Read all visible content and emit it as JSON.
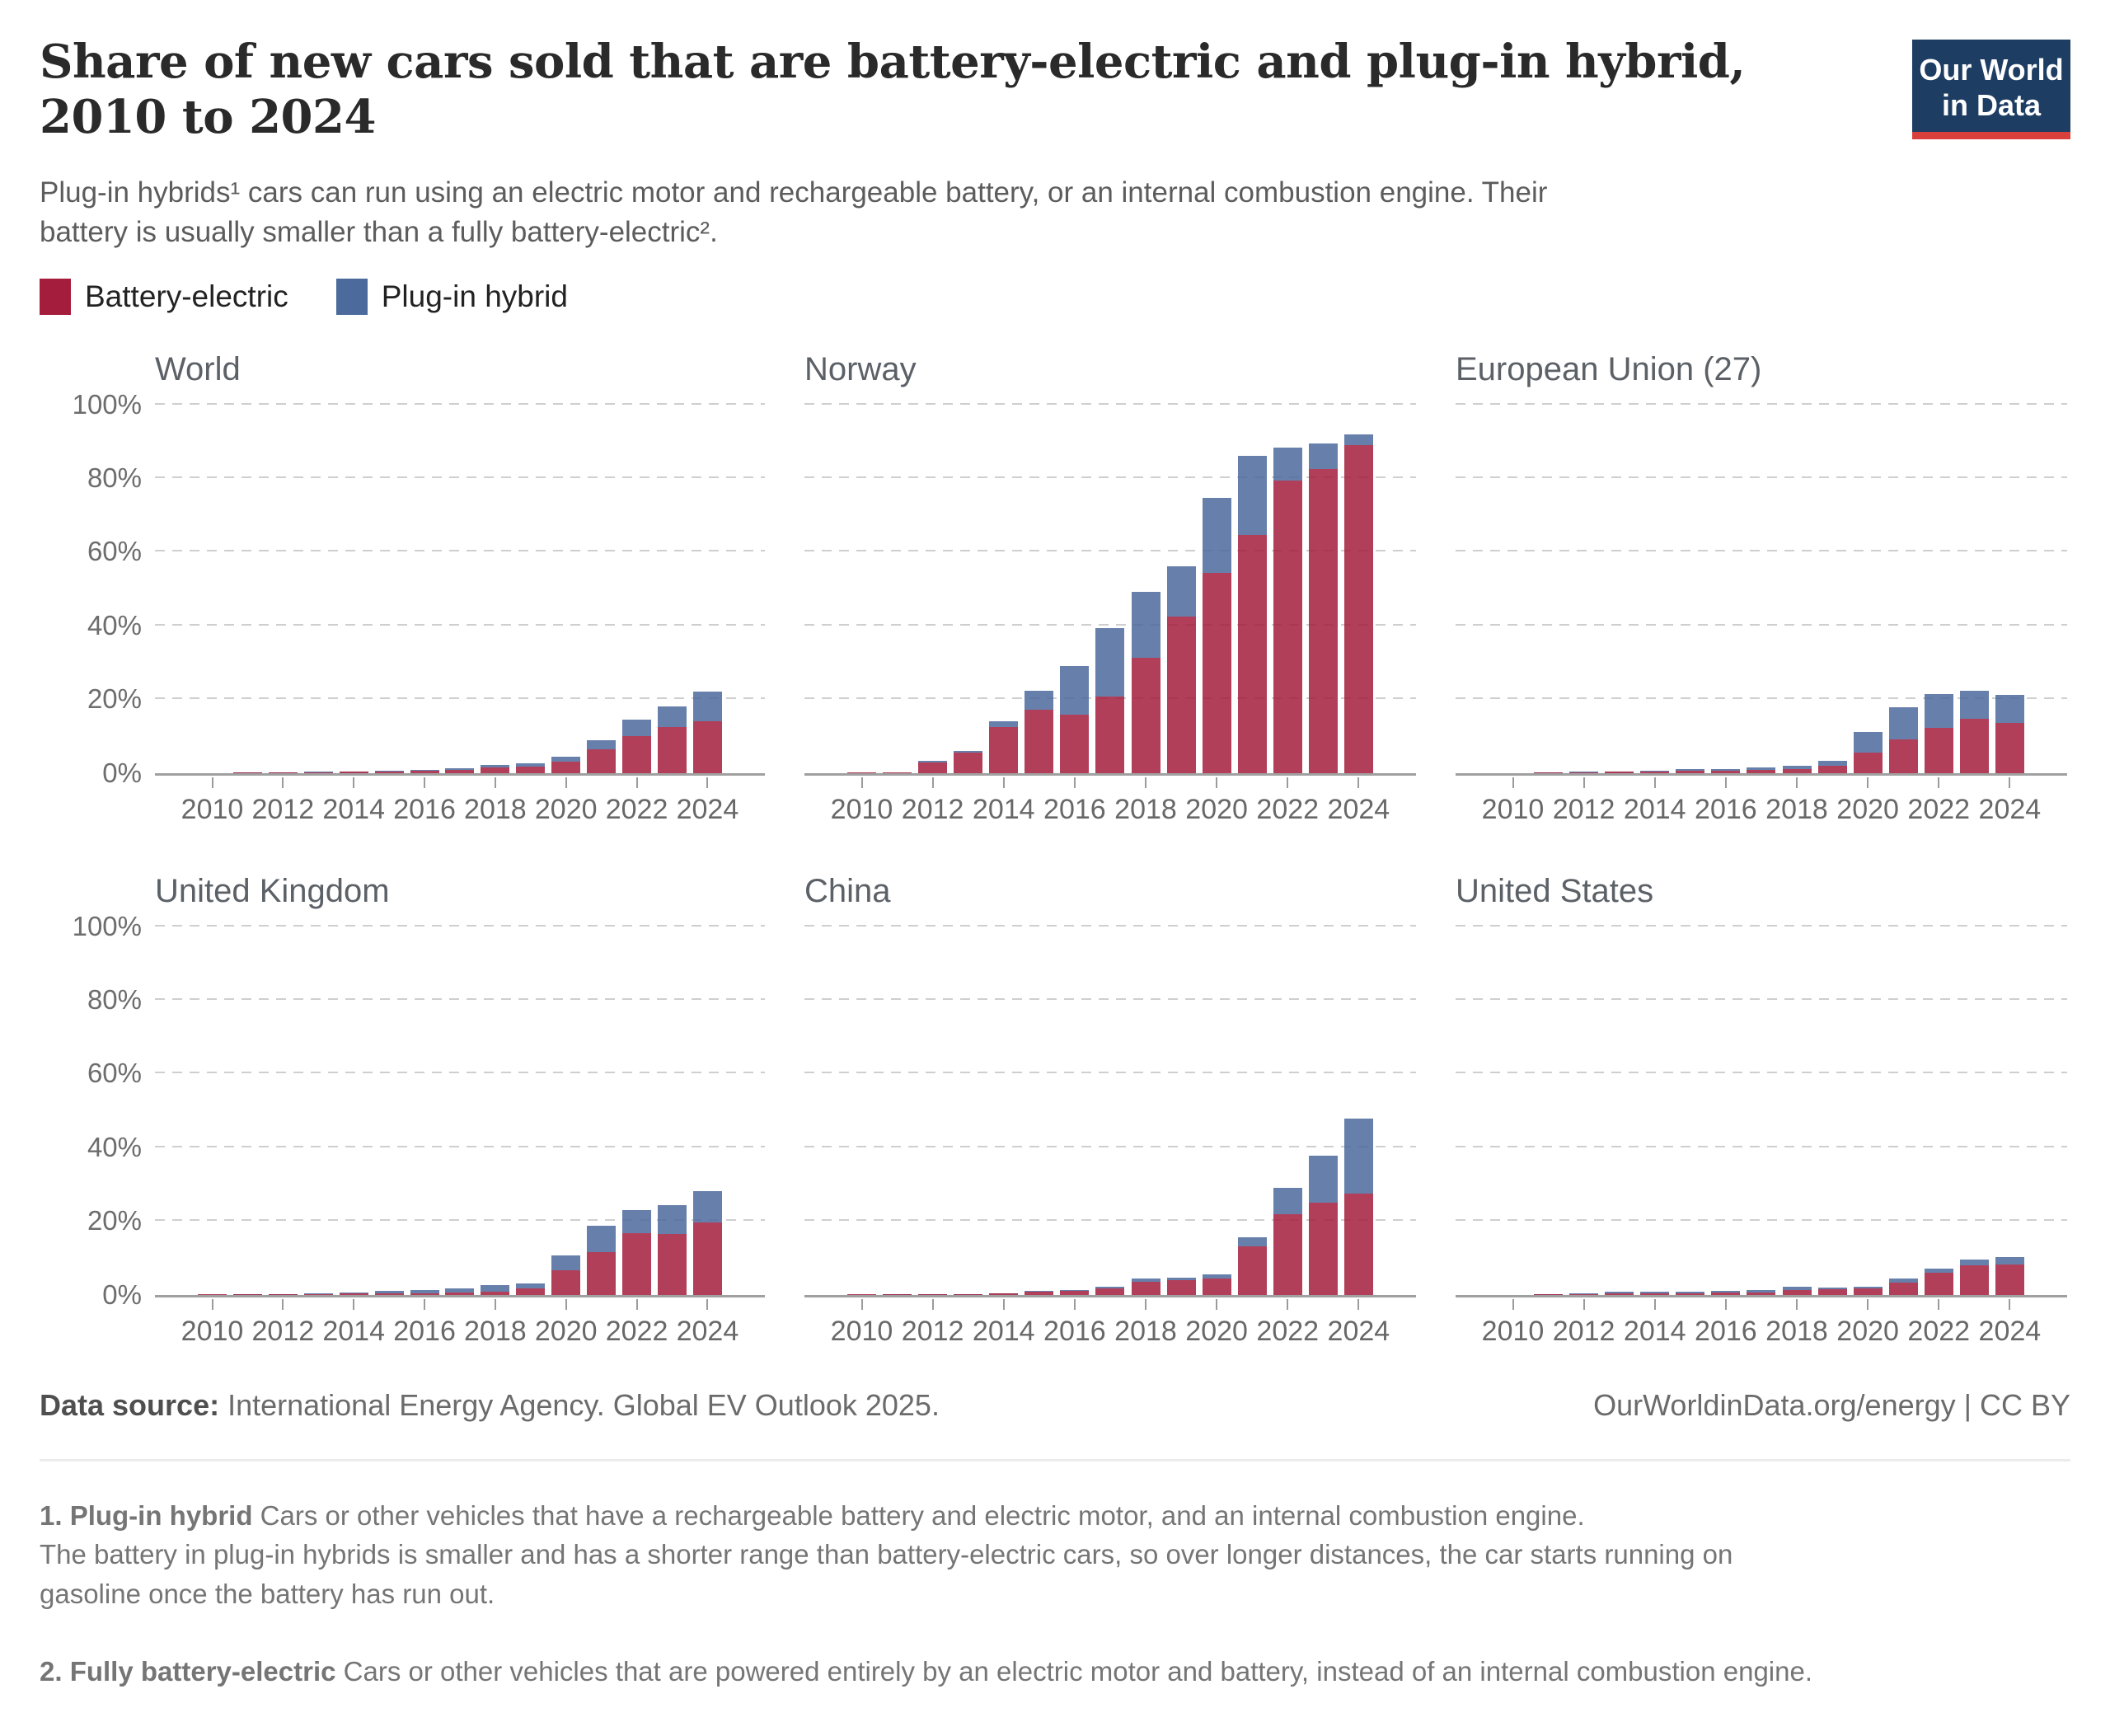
{
  "header": {
    "title_line1": "Share of new cars sold that are battery-electric and plug-in hybrid,",
    "title_line2": "2010 to 2024",
    "logo": {
      "line1": "Our World",
      "line2": "in Data"
    }
  },
  "subtitle": {
    "line1": "Plug-in hybrids¹ cars can run using an electric motor and rechargeable battery, or an internal combustion engine. Their",
    "line2": "battery is usually smaller than a fully battery-electric²."
  },
  "legend": {
    "items": [
      {
        "label": "Battery-electric",
        "color": "#a51d3c"
      },
      {
        "label": "Plug-in hybrid",
        "color": "#4c6a9c"
      }
    ]
  },
  "colors": {
    "logo_bg": "#1d3d63",
    "logo_accent": "#d8403c",
    "axis_line": "#a0a0a0",
    "gridline": "#cfcfcf"
  },
  "axes": {
    "y_ticks": [
      "0%",
      "20%",
      "40%",
      "60%",
      "80%",
      "100%"
    ],
    "x_tick_labels": [
      "2010",
      "2012",
      "2014",
      "2016",
      "2018",
      "2020",
      "2022",
      "2024"
    ],
    "ylim": [
      0,
      100
    ],
    "grid": "dashed horizontal every 20%"
  },
  "chart_data": [
    {
      "type": "bar",
      "stacked": true,
      "title": "World",
      "x": [
        2010,
        2011,
        2012,
        2013,
        2014,
        2015,
        2016,
        2017,
        2018,
        2019,
        2020,
        2021,
        2022,
        2023,
        2024
      ],
      "series": [
        {
          "name": "Battery-electric",
          "values": [
            0.01,
            0.04,
            0.08,
            0.15,
            0.25,
            0.4,
            0.6,
            0.9,
            1.4,
            1.7,
            3.1,
            6.3,
            10.0,
            12.4,
            13.9
          ]
        },
        {
          "name": "Plug-in hybrid",
          "values": [
            0.0,
            0.02,
            0.05,
            0.1,
            0.15,
            0.25,
            0.3,
            0.45,
            0.8,
            0.9,
            1.3,
            2.5,
            4.4,
            5.7,
            8.1
          ]
        }
      ]
    },
    {
      "type": "bar",
      "stacked": true,
      "title": "Norway",
      "x": [
        2010,
        2011,
        2012,
        2013,
        2014,
        2015,
        2016,
        2017,
        2018,
        2019,
        2020,
        2021,
        2022,
        2023,
        2024
      ],
      "series": [
        {
          "name": "Battery-electric",
          "values": [
            0.1,
            0.2,
            2.9,
            5.5,
            12.5,
            17.1,
            15.7,
            20.8,
            31.2,
            42.4,
            54.3,
            64.5,
            79.3,
            82.4,
            88.9
          ]
        },
        {
          "name": "Plug-in hybrid",
          "values": [
            0.0,
            0.0,
            0.3,
            0.4,
            1.4,
            5.1,
            13.4,
            18.4,
            17.9,
            13.6,
            20.4,
            21.5,
            8.9,
            7.1,
            2.9
          ]
        }
      ]
    },
    {
      "type": "bar",
      "stacked": true,
      "title": "European Union (27)",
      "x": [
        2010,
        2011,
        2012,
        2013,
        2014,
        2015,
        2016,
        2017,
        2018,
        2019,
        2020,
        2021,
        2022,
        2023,
        2024
      ],
      "series": [
        {
          "name": "Battery-electric",
          "values": [
            0.0,
            0.05,
            0.15,
            0.25,
            0.35,
            0.5,
            0.6,
            0.8,
            1.0,
            2.0,
            5.4,
            9.1,
            12.1,
            14.6,
            13.6
          ]
        },
        {
          "name": "Plug-in hybrid",
          "values": [
            0.0,
            0.02,
            0.1,
            0.2,
            0.25,
            0.45,
            0.5,
            0.7,
            0.9,
            1.2,
            5.7,
            8.7,
            9.3,
            7.7,
            7.5
          ]
        }
      ]
    },
    {
      "type": "bar",
      "stacked": true,
      "title": "United Kingdom",
      "x": [
        2010,
        2011,
        2012,
        2013,
        2014,
        2015,
        2016,
        2017,
        2018,
        2019,
        2020,
        2021,
        2022,
        2023,
        2024
      ],
      "series": [
        {
          "name": "Battery-electric",
          "values": [
            0.05,
            0.05,
            0.1,
            0.15,
            0.25,
            0.4,
            0.45,
            0.5,
            0.7,
            1.6,
            6.6,
            11.6,
            16.6,
            16.5,
            19.6
          ]
        },
        {
          "name": "Plug-in hybrid",
          "values": [
            0.0,
            0.05,
            0.1,
            0.1,
            0.3,
            0.7,
            0.9,
            1.3,
            1.8,
            1.5,
            4.1,
            7.0,
            6.3,
            7.7,
            8.6
          ]
        }
      ]
    },
    {
      "type": "bar",
      "stacked": true,
      "title": "China",
      "x": [
        2010,
        2011,
        2012,
        2013,
        2014,
        2015,
        2016,
        2017,
        2018,
        2019,
        2020,
        2021,
        2022,
        2023,
        2024
      ],
      "series": [
        {
          "name": "Battery-electric",
          "values": [
            0.03,
            0.06,
            0.1,
            0.15,
            0.25,
            0.8,
            1.1,
            1.8,
            3.4,
            3.9,
            4.4,
            13.2,
            21.9,
            24.9,
            27.5
          ]
        },
        {
          "name": "Plug-in hybrid",
          "values": [
            0.0,
            0.02,
            0.04,
            0.05,
            0.1,
            0.2,
            0.25,
            0.4,
            1.0,
            0.8,
            1.0,
            2.3,
            7.1,
            12.8,
            20.2
          ]
        }
      ]
    },
    {
      "type": "bar",
      "stacked": true,
      "title": "United States",
      "x": [
        2010,
        2011,
        2012,
        2013,
        2014,
        2015,
        2016,
        2017,
        2018,
        2019,
        2020,
        2021,
        2022,
        2023,
        2024
      ],
      "series": [
        {
          "name": "Battery-electric",
          "values": [
            0.01,
            0.1,
            0.1,
            0.45,
            0.4,
            0.4,
            0.55,
            0.65,
            1.3,
            1.4,
            1.7,
            3.2,
            5.9,
            7.9,
            8.1
          ]
        },
        {
          "name": "Plug-in hybrid",
          "values": [
            0.0,
            0.1,
            0.35,
            0.4,
            0.35,
            0.3,
            0.4,
            0.55,
            0.75,
            0.45,
            0.5,
            1.2,
            1.1,
            1.7,
            2.2
          ]
        }
      ]
    }
  ],
  "footer": {
    "source_label": "Data source:",
    "source_text": "International Energy Agency. Global EV Outlook 2025.",
    "credit": "OurWorldinData.org/energy | CC BY"
  },
  "footnotes": [
    {
      "lead": "1. Plug-in hybrid",
      "rest": "Cars or other vehicles that have a rechargeable battery and electric motor, and an internal combustion engine.",
      "extra_lines": [
        "The battery in plug-in hybrids is smaller and has a shorter range than battery-electric cars, so over longer distances, the car starts running on",
        "gasoline once the battery has run out."
      ]
    },
    {
      "lead": "2. Fully battery-electric",
      "rest": "Cars or other vehicles that are powered entirely by an electric motor and battery, instead of an internal combustion engine.",
      "extra_lines": []
    }
  ]
}
